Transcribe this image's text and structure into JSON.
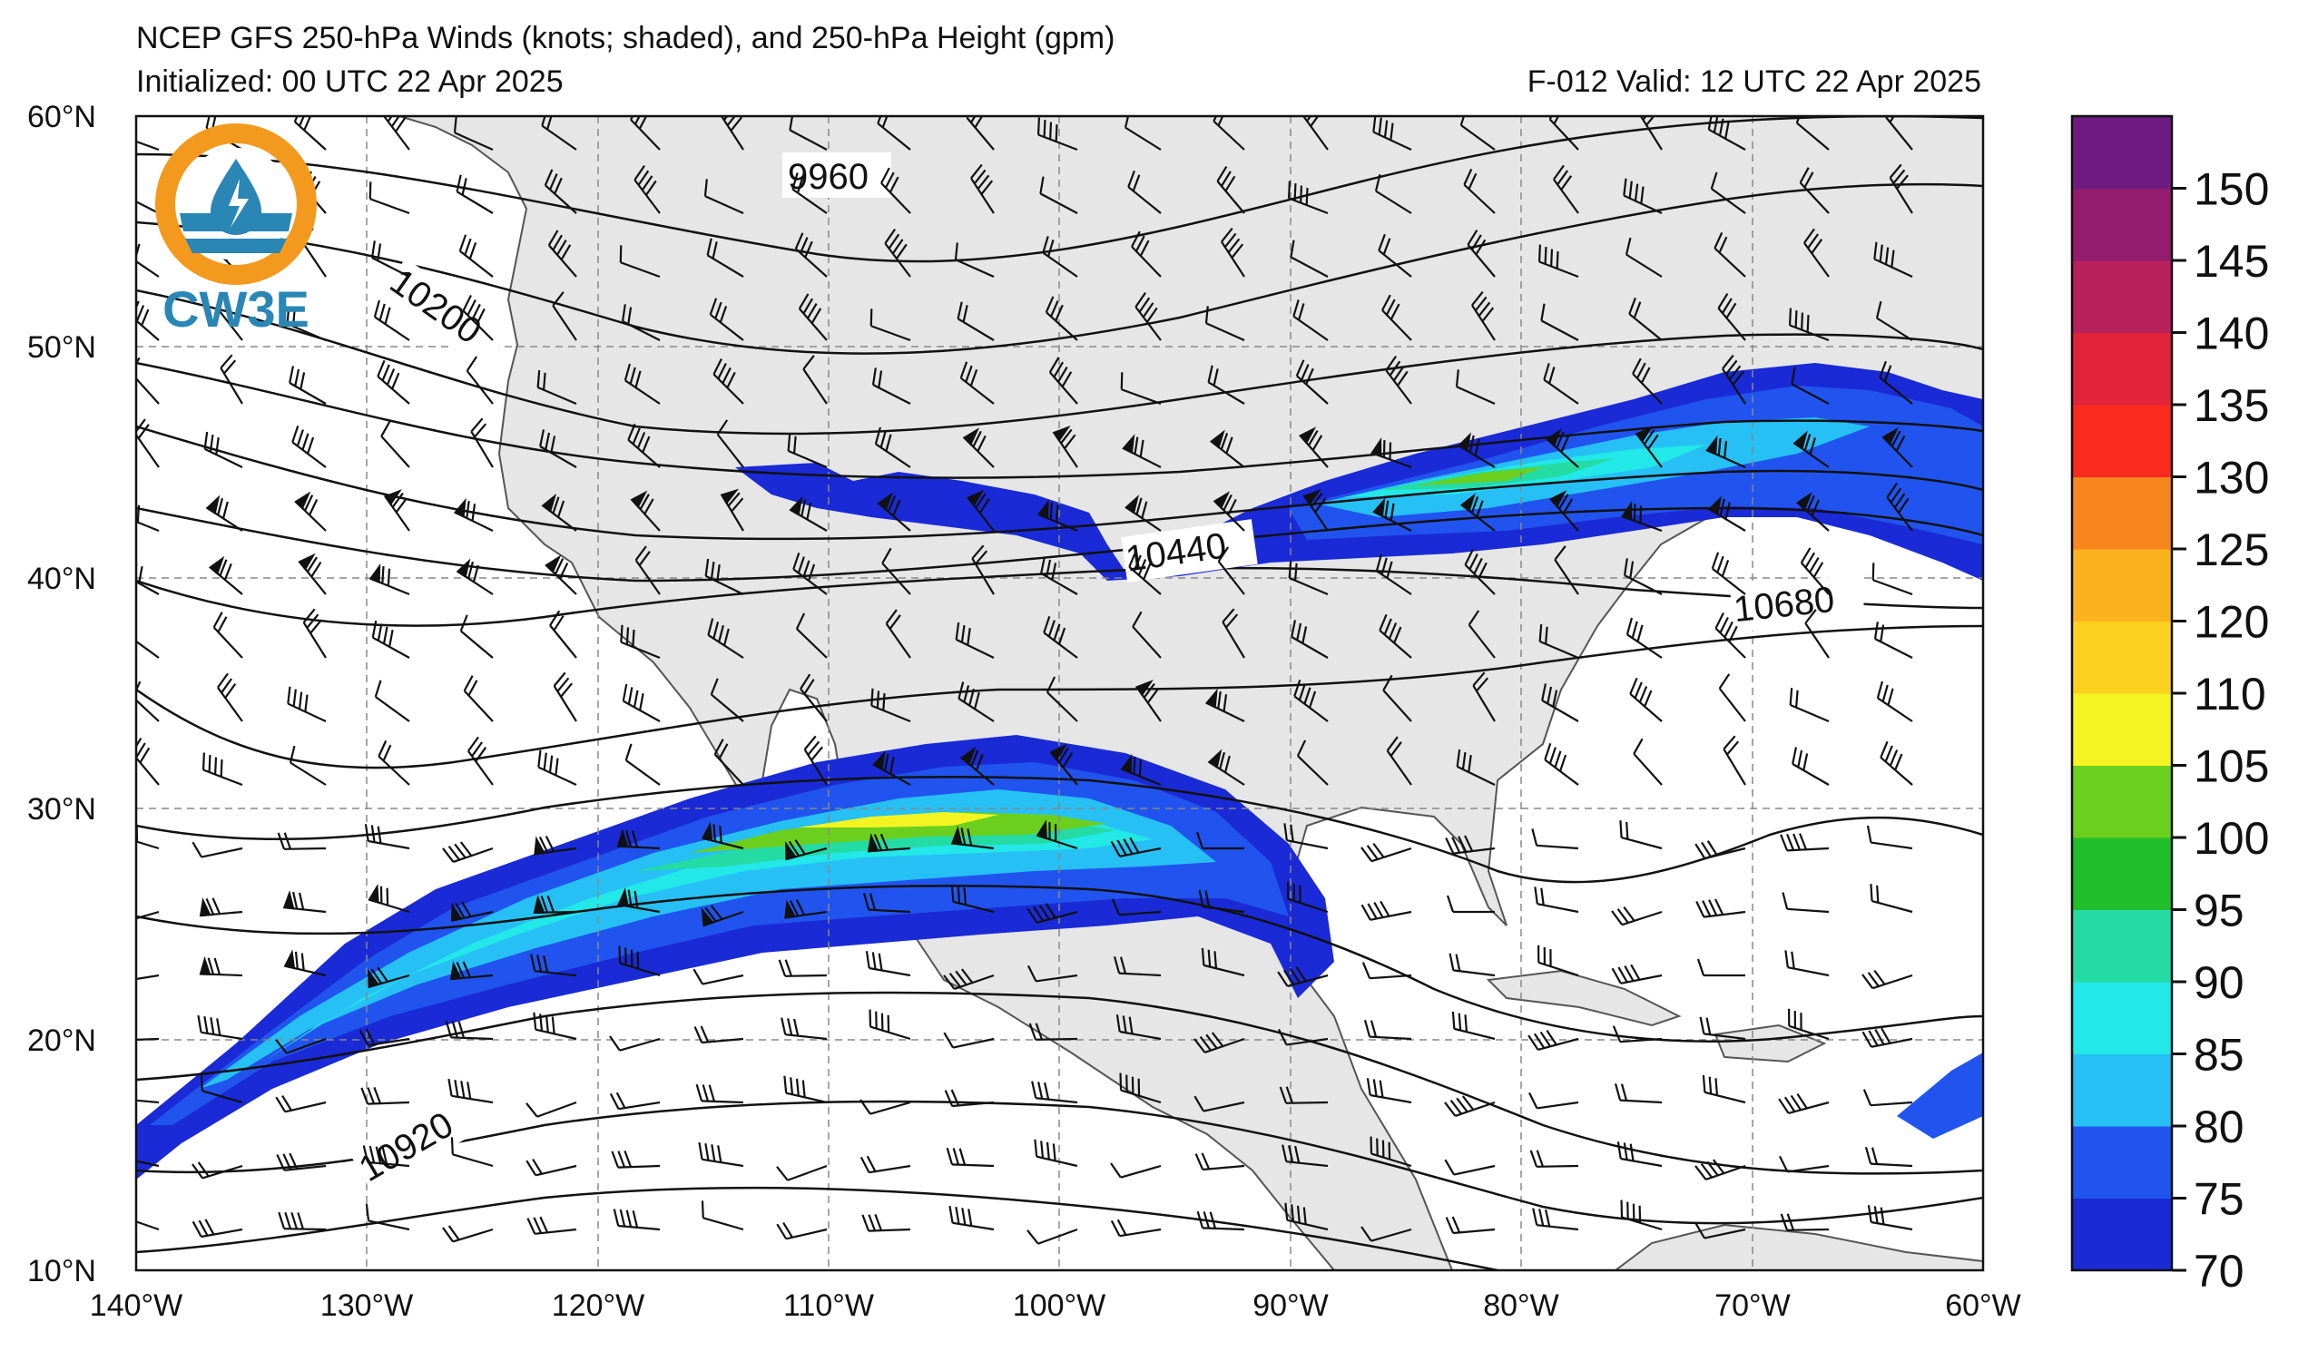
{
  "header": {
    "title": "NCEP GFS 250-hPa Winds (knots; shaded), and 250-hPa Height (gpm)",
    "initialized": "Initialized: 00 UTC 22 Apr 2025",
    "valid": "F-012  Valid: 12 UTC 22 Apr 2025"
  },
  "logo": {
    "text": "CW3E",
    "colors": {
      "ring": "#F39A1E",
      "body": "#2A86B5"
    }
  },
  "map": {
    "lon_range": [
      -140,
      -60
    ],
    "lat_range": [
      10,
      60
    ],
    "lat_labels": [
      "60°N",
      "50°N",
      "40°N",
      "30°N",
      "20°N",
      "10°N"
    ],
    "lon_labels": [
      "140°W",
      "130°W",
      "120°W",
      "110°W",
      "100°W",
      "90°W",
      "80°W",
      "70°W",
      "60°W"
    ],
    "contour_labels": [
      "9960",
      "10200",
      "10440",
      "10680",
      "10920"
    ],
    "land_color": "#e6e6e6",
    "grid": true
  },
  "colorbar": {
    "ticks": [
      "70",
      "75",
      "80",
      "85",
      "90",
      "95",
      "100",
      "105",
      "110",
      "120",
      "125",
      "130",
      "135",
      "140",
      "145",
      "150"
    ],
    "colors": [
      "#1a2ad6",
      "#2154ee",
      "#26c0f5",
      "#22e8e8",
      "#24dba4",
      "#1fbe2a",
      "#6ccf1e",
      "#f4f422",
      "#fbd01f",
      "#fbb21f",
      "#f7861f",
      "#fb2a1e",
      "#e2233a",
      "#b8215c",
      "#921c6e",
      "#6f1c82"
    ]
  }
}
